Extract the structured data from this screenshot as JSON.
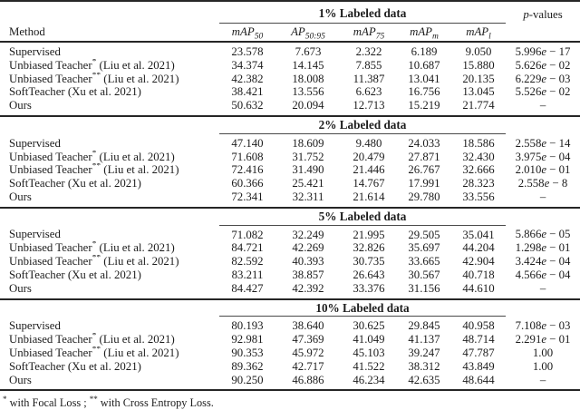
{
  "header": {
    "method_label": "Method",
    "pvalues": {
      "italic": "p",
      "rest": "-values"
    },
    "metric_headers": [
      {
        "base": "mAP",
        "sub": "50"
      },
      {
        "base": "AP",
        "sub": "50:95"
      },
      {
        "base": "mAP",
        "sub": "75"
      },
      {
        "base": "mAP",
        "sub": "m"
      },
      {
        "base": "mAP",
        "sub": "l"
      }
    ]
  },
  "sections": [
    {
      "title": "1% Labeled data",
      "rows": [
        {
          "method": "Supervised",
          "sup": "",
          "cite": "",
          "values": [
            "23.578",
            "7.673",
            "2.322",
            "6.189",
            "9.050"
          ],
          "p": "5.996e − 17"
        },
        {
          "method": "Unbiased Teacher",
          "sup": "*",
          "cite": "(Liu et al. 2021)",
          "values": [
            "34.374",
            "14.145",
            "7.855",
            "10.687",
            "15.880"
          ],
          "p": "5.626e − 02"
        },
        {
          "method": "Unbiased Teacher",
          "sup": "**",
          "cite": "(Liu et al. 2021)",
          "values": [
            "42.382",
            "18.008",
            "11.387",
            "13.041",
            "20.135"
          ],
          "p": "6.229e − 03"
        },
        {
          "method": "SoftTeacher",
          "sup": "",
          "cite": "(Xu et al. 2021)",
          "values": [
            "38.421",
            "13.556",
            "6.623",
            "16.756",
            "13.045"
          ],
          "p": "5.526e − 02"
        },
        {
          "method": "Ours",
          "sup": "",
          "cite": "",
          "values": [
            "50.632",
            "20.094",
            "12.713",
            "15.219",
            "21.774"
          ],
          "p": "–"
        }
      ]
    },
    {
      "title": "2% Labeled data",
      "rows": [
        {
          "method": "Supervised",
          "sup": "",
          "cite": "",
          "values": [
            "47.140",
            "18.609",
            "9.480",
            "24.033",
            "18.586"
          ],
          "p": "2.558e − 14"
        },
        {
          "method": "Unbiased Teacher",
          "sup": "*",
          "cite": "(Liu et al. 2021)",
          "values": [
            "71.608",
            "31.752",
            "20.479",
            "27.871",
            "32.430"
          ],
          "p": "3.975e − 04"
        },
        {
          "method": "Unbiased Teacher",
          "sup": "**",
          "cite": "(Liu et al. 2021)",
          "values": [
            "72.416",
            "31.490",
            "21.446",
            "26.767",
            "32.666"
          ],
          "p": "2.010e − 01"
        },
        {
          "method": "SoftTeacher",
          "sup": "",
          "cite": "(Xu et al. 2021)",
          "values": [
            "60.366",
            "25.421",
            "14.767",
            "17.991",
            "28.323"
          ],
          "p": "2.558e − 8"
        },
        {
          "method": "Ours",
          "sup": "",
          "cite": "",
          "values": [
            "72.341",
            "32.311",
            "21.614",
            "29.780",
            "33.556"
          ],
          "p": "–"
        }
      ]
    },
    {
      "title": "5% Labeled data",
      "rows": [
        {
          "method": "Supervised",
          "sup": "",
          "cite": "",
          "values": [
            "71.082",
            "32.249",
            "21.995",
            "29.505",
            "35.041"
          ],
          "p": "5.866e − 05"
        },
        {
          "method": "Unbiased Teacher",
          "sup": "*",
          "cite": "(Liu et al. 2021)",
          "values": [
            "84.721",
            "42.269",
            "32.826",
            "35.697",
            "44.204"
          ],
          "p": "1.298e − 01"
        },
        {
          "method": "Unbiased Teacher",
          "sup": "**",
          "cite": "(Liu et al. 2021)",
          "values": [
            "82.592",
            "40.393",
            "30.735",
            "33.665",
            "42.904"
          ],
          "p": "3.424e − 04"
        },
        {
          "method": "SoftTeacher",
          "sup": "",
          "cite": "(Xu et al. 2021)",
          "values": [
            "83.211",
            "38.857",
            "26.643",
            "30.567",
            "40.718"
          ],
          "p": "4.566e − 04"
        },
        {
          "method": "Ours",
          "sup": "",
          "cite": "",
          "values": [
            "84.427",
            "42.392",
            "33.376",
            "31.156",
            "44.610"
          ],
          "p": "–"
        }
      ]
    },
    {
      "title": "10% Labeled data",
      "rows": [
        {
          "method": "Supervised",
          "sup": "",
          "cite": "",
          "values": [
            "80.193",
            "38.640",
            "30.625",
            "29.845",
            "40.958"
          ],
          "p": "7.108e − 03"
        },
        {
          "method": "Unbiased Teacher",
          "sup": "*",
          "cite": "(Liu et al. 2021)",
          "values": [
            "92.981",
            "47.369",
            "41.049",
            "41.137",
            "48.714"
          ],
          "p": "2.291e − 01"
        },
        {
          "method": "Unbiased Teacher",
          "sup": "**",
          "cite": "(Liu et al. 2021)",
          "values": [
            "90.353",
            "45.972",
            "45.103",
            "39.247",
            "47.787"
          ],
          "p": "1.00"
        },
        {
          "method": "SoftTeacher",
          "sup": "",
          "cite": "(Xu et al. 2021)",
          "values": [
            "89.362",
            "42.717",
            "41.522",
            "38.312",
            "43.849"
          ],
          "p": "1.00"
        },
        {
          "method": "Ours",
          "sup": "",
          "cite": "",
          "values": [
            "90.250",
            "46.886",
            "46.234",
            "42.635",
            "48.644"
          ],
          "p": "–"
        }
      ]
    }
  ],
  "footnote": {
    "parts": [
      {
        "sup": "*",
        "text": " with Focal Loss ; "
      },
      {
        "sup": "**",
        "text": " with Cross Entropy Loss."
      }
    ]
  }
}
